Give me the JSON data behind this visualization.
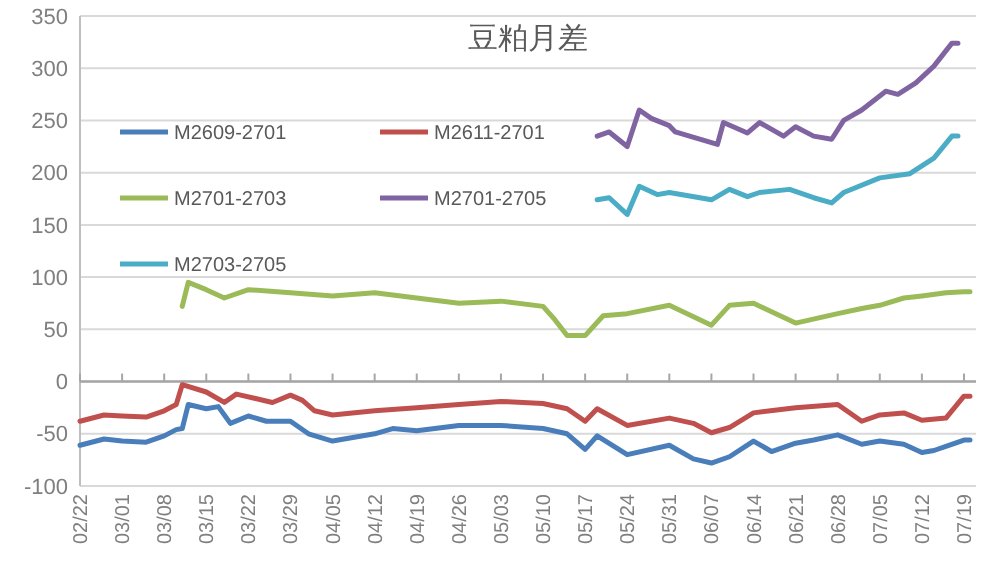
{
  "chart_data": {
    "type": "line",
    "title": "豆粕月差",
    "xlim": [
      "--02-22",
      "--07-21"
    ],
    "ylim": [
      -100,
      350
    ],
    "yticks": [
      -100,
      -50,
      0,
      50,
      100,
      150,
      200,
      250,
      300,
      350
    ],
    "xticks": [
      {
        "value": "--02-22",
        "label": "02/22"
      },
      {
        "value": "--03-01",
        "label": "03/01"
      },
      {
        "value": "--03-08",
        "label": "03/08"
      },
      {
        "value": "--03-15",
        "label": "03/15"
      },
      {
        "value": "--03-22",
        "label": "03/22"
      },
      {
        "value": "--03-29",
        "label": "03/29"
      },
      {
        "value": "--04-05",
        "label": "04/05"
      },
      {
        "value": "--04-12",
        "label": "04/12"
      },
      {
        "value": "--04-19",
        "label": "04/19"
      },
      {
        "value": "--04-26",
        "label": "04/26"
      },
      {
        "value": "--05-03",
        "label": "05/03"
      },
      {
        "value": "--05-10",
        "label": "05/10"
      },
      {
        "value": "--05-17",
        "label": "05/17"
      },
      {
        "value": "--05-24",
        "label": "05/24"
      },
      {
        "value": "--05-31",
        "label": "05/31"
      },
      {
        "value": "--06-07",
        "label": "06/07"
      },
      {
        "value": "--06-14",
        "label": "06/14"
      },
      {
        "value": "--06-21",
        "label": "06/21"
      },
      {
        "value": "--06-28",
        "label": "06/28"
      },
      {
        "value": "--07-05",
        "label": "07/05"
      },
      {
        "value": "--07-12",
        "label": "07/12"
      },
      {
        "value": "--07-19",
        "label": "07/19"
      }
    ],
    "grid": "y",
    "legend": "top left",
    "line_style": "solid",
    "series": [
      {
        "name": "M2609-2701",
        "color": "#4a7ebb",
        "x": [
          "--02-22",
          "--02-26",
          "--03-01",
          "--03-05",
          "--03-08",
          "--03-10",
          "--03-11",
          "--03-12",
          "--03-15",
          "--03-17",
          "--03-19",
          "--03-22",
          "--03-25",
          "--03-29",
          "--04-01",
          "--04-05",
          "--04-12",
          "--04-15",
          "--04-19",
          "--04-26",
          "--05-03",
          "--05-10",
          "--05-14",
          "--05-17",
          "--05-19",
          "--05-24",
          "--05-31",
          "--06-04",
          "--06-07",
          "--06-10",
          "--06-14",
          "--06-17",
          "--06-21",
          "--06-24",
          "--06-28",
          "--07-02",
          "--07-05",
          "--07-09",
          "--07-12",
          "--07-14",
          "--07-16",
          "--07-19",
          "--07-20"
        ],
        "values": [
          -61,
          -55,
          -57,
          -58,
          -52,
          -46,
          -45,
          -22,
          -26,
          -24,
          -40,
          -33,
          -38,
          -38,
          -50,
          -57,
          -50,
          -45,
          -47,
          -42,
          -42,
          -45,
          -50,
          -65,
          -52,
          -70,
          -61,
          -74,
          -78,
          -72,
          -57,
          -67,
          -59,
          -56,
          -51,
          -60,
          -57,
          -60,
          -68,
          -66,
          -62,
          -56,
          -56
        ]
      },
      {
        "name": "M2611-2701",
        "color": "#c0504d",
        "x": [
          "--02-22",
          "--02-26",
          "--03-01",
          "--03-05",
          "--03-08",
          "--03-10",
          "--03-11",
          "--03-15",
          "--03-18",
          "--03-20",
          "--03-26",
          "--03-29",
          "--03-31",
          "--04-02",
          "--04-05",
          "--04-12",
          "--04-19",
          "--04-26",
          "--05-03",
          "--05-10",
          "--05-14",
          "--05-17",
          "--05-19",
          "--05-24",
          "--05-31",
          "--06-04",
          "--06-07",
          "--06-10",
          "--06-14",
          "--06-21",
          "--06-28",
          "--07-02",
          "--07-05",
          "--07-09",
          "--07-12",
          "--07-16",
          "--07-19",
          "--07-20"
        ],
        "values": [
          -38,
          -32,
          -33,
          -34,
          -28,
          -22,
          -3,
          -10,
          -20,
          -12,
          -20,
          -13,
          -18,
          -28,
          -32,
          -28,
          -25,
          -22,
          -19,
          -21,
          -26,
          -38,
          -26,
          -42,
          -35,
          -40,
          -49,
          -44,
          -30,
          -25,
          -22,
          -38,
          -32,
          -30,
          -37,
          -35,
          -14,
          -14
        ]
      },
      {
        "name": "M2701-2703",
        "color": "#9bbb59",
        "x": [
          "--03-11",
          "--03-12",
          "--03-15",
          "--03-18",
          "--03-22",
          "--03-29",
          "--04-05",
          "--04-12",
          "--04-19",
          "--04-26",
          "--05-03",
          "--05-10",
          "--05-12",
          "--05-14",
          "--05-17",
          "--05-20",
          "--05-24",
          "--05-31",
          "--06-07",
          "--06-10",
          "--06-14",
          "--06-21",
          "--06-28",
          "--07-02",
          "--07-05",
          "--07-09",
          "--07-12",
          "--07-16",
          "--07-19",
          "--07-20"
        ],
        "values": [
          72,
          95,
          88,
          80,
          88,
          85,
          82,
          85,
          80,
          75,
          77,
          72,
          59,
          44,
          44,
          63,
          65,
          73,
          54,
          73,
          75,
          56,
          65,
          70,
          73,
          80,
          82,
          85,
          86,
          86
        ]
      },
      {
        "name": "M2701-2705",
        "color": "#8064a2",
        "x": [
          "--05-19",
          "--05-21",
          "--05-24",
          "--05-26",
          "--05-28",
          "--05-31",
          "--06-01",
          "--06-08",
          "--06-09",
          "--06-13",
          "--06-15",
          "--06-19",
          "--06-21",
          "--06-24",
          "--06-27",
          "--06-29",
          "--07-02",
          "--07-06",
          "--07-08",
          "--07-11",
          "--07-14",
          "--07-17",
          "--07-18"
        ],
        "values": [
          235,
          239,
          225,
          260,
          252,
          245,
          239,
          227,
          248,
          238,
          248,
          235,
          244,
          235,
          232,
          250,
          260,
          278,
          275,
          286,
          302,
          324,
          324
        ]
      },
      {
        "name": "M2703-2705",
        "color": "#4bacc6",
        "x": [
          "--05-19",
          "--05-21",
          "--05-24",
          "--05-26",
          "--05-29",
          "--05-31",
          "--06-07",
          "--06-10",
          "--06-13",
          "--06-15",
          "--06-20",
          "--06-24",
          "--06-27",
          "--06-29",
          "--07-05",
          "--07-10",
          "--07-14",
          "--07-17",
          "--07-18"
        ],
        "values": [
          174,
          176,
          160,
          187,
          179,
          181,
          174,
          184,
          177,
          181,
          184,
          176,
          171,
          181,
          195,
          199,
          214,
          235,
          235
        ]
      }
    ]
  }
}
